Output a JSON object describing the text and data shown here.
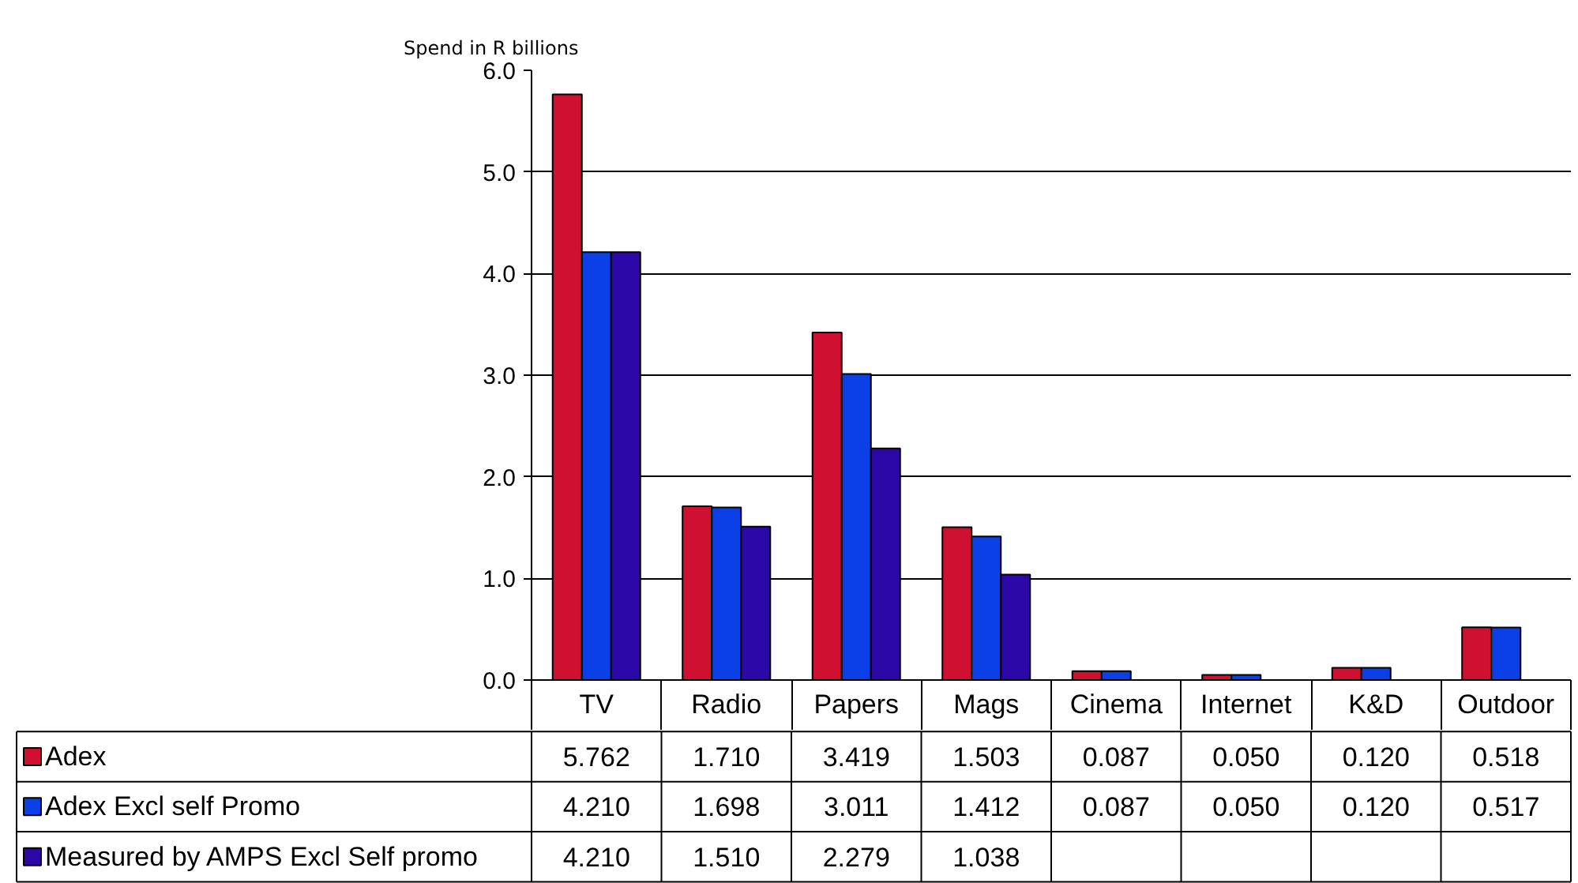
{
  "chart_data": {
    "type": "bar",
    "ylabel": "Spend in R billions",
    "categories": [
      "TV",
      "Radio",
      "Papers",
      "Mags",
      "Cinema",
      "Internet",
      "K&D",
      "Outdoor"
    ],
    "series": [
      {
        "name": "Adex",
        "color": "#d01030",
        "values": [
          5.762,
          1.71,
          3.419,
          1.503,
          0.087,
          0.05,
          0.12,
          0.518
        ],
        "value_labels": [
          "5.762",
          "1.710",
          "3.419",
          "1.503",
          "0.087",
          "0.050",
          "0.120",
          "0.518"
        ]
      },
      {
        "name": "Adex Excl self Promo",
        "color": "#0a40e6",
        "values": [
          4.21,
          1.698,
          3.011,
          1.412,
          0.087,
          0.05,
          0.12,
          0.517
        ],
        "value_labels": [
          "4.210",
          "1.698",
          "3.011",
          "1.412",
          "0.087",
          "0.050",
          "0.120",
          "0.517"
        ]
      },
      {
        "name": "Measured by AMPS Excl Self promo",
        "color": "#2c08a8",
        "values": [
          4.21,
          1.51,
          2.279,
          1.038,
          null,
          null,
          null,
          null
        ],
        "value_labels": [
          "4.210",
          "1.510",
          "2.279",
          "1.038",
          null,
          null,
          null,
          null
        ]
      }
    ],
    "ylim": [
      0,
      6
    ],
    "yticks": [
      {
        "value": 0,
        "label": "0.0"
      },
      {
        "value": 1,
        "label": "1.0"
      },
      {
        "value": 2,
        "label": "2.0"
      },
      {
        "value": 3,
        "label": "3.0"
      },
      {
        "value": 4,
        "label": "4.0"
      },
      {
        "value": 5,
        "label": "5.0"
      },
      {
        "value": 6,
        "label": "6.0"
      }
    ],
    "grid": "y",
    "legend": "bottom left"
  }
}
